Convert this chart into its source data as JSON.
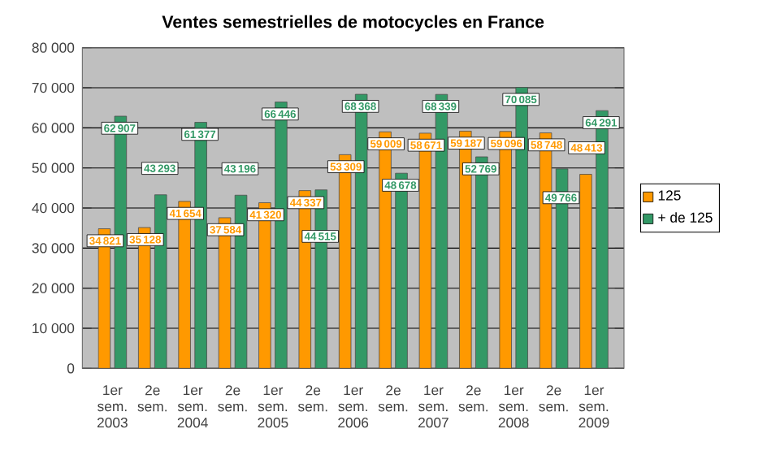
{
  "chart_data": {
    "type": "bar",
    "title": "Ventes semestrielles de motocycles en France",
    "categories": [
      "1er sem. 2003",
      "2e sem.",
      "1er sem. 2004",
      "2e sem.",
      "1er sem. 2005",
      "2e sem.",
      "1er sem. 2006",
      "2e sem.",
      "1er sem. 2007",
      "2e sem.",
      "1er sem. 2008",
      "2e sem.",
      "1er sem. 2009"
    ],
    "series": [
      {
        "name": "125",
        "color": "#ff9900",
        "values": [
          34821,
          35128,
          41654,
          37584,
          41320,
          44337,
          53309,
          59009,
          58671,
          59187,
          59096,
          58748,
          48413
        ]
      },
      {
        "name": "+ de 125",
        "color": "#339966",
        "values": [
          62907,
          43293,
          61377,
          43196,
          66446,
          44515,
          68368,
          48678,
          68339,
          52769,
          70085,
          49766,
          64291
        ]
      }
    ],
    "ylim": [
      0,
      80000
    ],
    "yticks": [
      {
        "value": 0,
        "label": "0"
      },
      {
        "value": 10000,
        "label": "10 000"
      },
      {
        "value": 20000,
        "label": "20 000"
      },
      {
        "value": 30000,
        "label": "30 000"
      },
      {
        "value": 40000,
        "label": "40 000"
      },
      {
        "value": 50000,
        "label": "50 000"
      },
      {
        "value": 60000,
        "label": "60 000"
      },
      {
        "value": 70000,
        "label": "70 000"
      },
      {
        "value": 80000,
        "label": "80 000"
      }
    ],
    "grid": "y",
    "legend": "right",
    "data_labels": true
  }
}
